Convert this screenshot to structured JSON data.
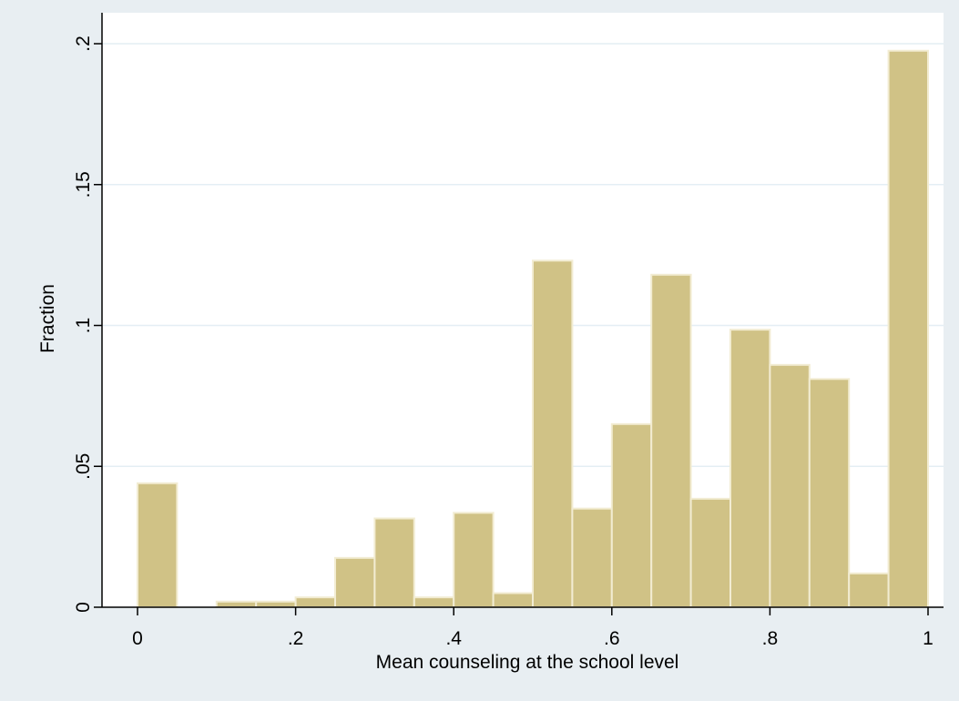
{
  "chart_data": {
    "type": "bar",
    "title": "",
    "xlabel": "Mean counseling at the school level",
    "ylabel": "Fraction",
    "xlim": [
      0,
      1
    ],
    "ylim": [
      0,
      0.2
    ],
    "bin_width": 0.05,
    "x_ticks": [
      {
        "value": 0,
        "label": "0"
      },
      {
        "value": 0.2,
        "label": ".2"
      },
      {
        "value": 0.4,
        "label": ".4"
      },
      {
        "value": 0.6,
        "label": ".6"
      },
      {
        "value": 0.8,
        "label": ".8"
      },
      {
        "value": 1,
        "label": "1"
      }
    ],
    "y_ticks": [
      {
        "value": 0,
        "label": "0"
      },
      {
        "value": 0.05,
        "label": ".05"
      },
      {
        "value": 0.1,
        "label": ".1"
      },
      {
        "value": 0.15,
        "label": ".15"
      },
      {
        "value": 0.2,
        "label": ".2"
      }
    ],
    "bins": [
      {
        "start": 0.0,
        "value": 0.044
      },
      {
        "start": 0.05,
        "value": 0.0
      },
      {
        "start": 0.1,
        "value": 0.002
      },
      {
        "start": 0.15,
        "value": 0.002
      },
      {
        "start": 0.2,
        "value": 0.0035
      },
      {
        "start": 0.25,
        "value": 0.0175
      },
      {
        "start": 0.3,
        "value": 0.0315
      },
      {
        "start": 0.35,
        "value": 0.0035
      },
      {
        "start": 0.4,
        "value": 0.0335
      },
      {
        "start": 0.45,
        "value": 0.005
      },
      {
        "start": 0.5,
        "value": 0.123
      },
      {
        "start": 0.55,
        "value": 0.035
      },
      {
        "start": 0.6,
        "value": 0.065
      },
      {
        "start": 0.65,
        "value": 0.118
      },
      {
        "start": 0.7,
        "value": 0.0385
      },
      {
        "start": 0.75,
        "value": 0.0985
      },
      {
        "start": 0.8,
        "value": 0.086
      },
      {
        "start": 0.85,
        "value": 0.081
      },
      {
        "start": 0.9,
        "value": 0.012
      },
      {
        "start": 0.95,
        "value": 0.1975
      }
    ],
    "grid": true,
    "colors": {
      "bar_fill": "#d0c286",
      "bar_stroke": "#f2ecd2",
      "plot_background": "#ffffff",
      "outer_background": "#e8eef2",
      "gridline": "#e4eef4",
      "axis": "#000000"
    }
  }
}
